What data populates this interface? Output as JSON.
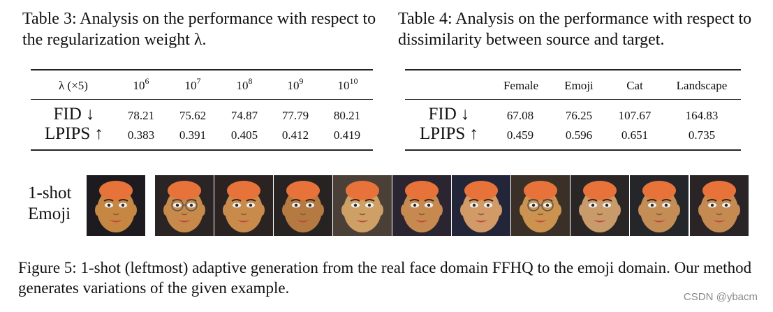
{
  "table3": {
    "caption": "Table 3: Analysis on the performance with respect to the regularization weight λ.",
    "corner_header": "λ (×5)",
    "columns": [
      {
        "base": "10",
        "exp": "6"
      },
      {
        "base": "10",
        "exp": "7"
      },
      {
        "base": "10",
        "exp": "8"
      },
      {
        "base": "10",
        "exp": "9"
      },
      {
        "base": "10",
        "exp": "10"
      }
    ],
    "rows": [
      {
        "label": "FID ↓",
        "values": [
          "78.21",
          "75.62",
          "74.87",
          "77.79",
          "80.21"
        ]
      },
      {
        "label": "LPIPS ↑",
        "values": [
          "0.383",
          "0.391",
          "0.405",
          "0.412",
          "0.419"
        ]
      }
    ]
  },
  "table4": {
    "caption": "Table 4: Analysis on the performance with respect to dissimilarity between source and target.",
    "columns": [
      "Female",
      "Emoji",
      "Cat",
      "Landscape"
    ],
    "rows": [
      {
        "label": "FID ↓",
        "values": [
          "67.08",
          "76.25",
          "107.67",
          "164.83"
        ]
      },
      {
        "label": "LPIPS ↑",
        "values": [
          "0.459",
          "0.596",
          "0.651",
          "0.735"
        ]
      }
    ]
  },
  "figure5": {
    "row_label_line1": "1-shot",
    "row_label_line2": "Emoji",
    "caption": "Figure 5: 1-shot (leftmost) adaptive generation from the real face domain FFHQ to the emoji domain. Our method generates variations of the given example."
  },
  "watermark": "CSDN @ybacm",
  "colors": {
    "hair": "#e8733a",
    "skin": "#c98a45",
    "background_dark": "#1f1d22"
  }
}
